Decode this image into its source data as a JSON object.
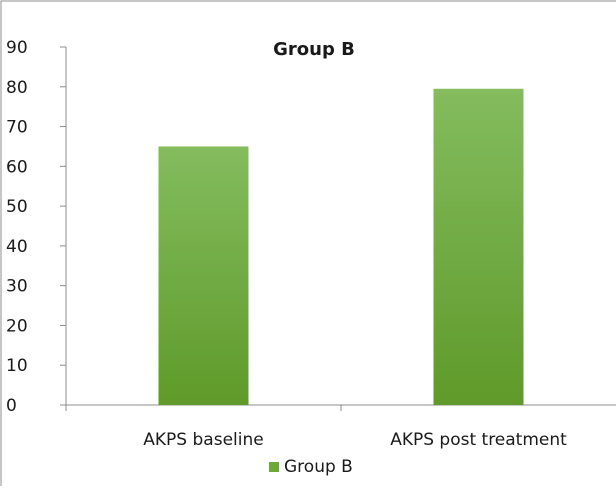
{
  "chart_data": {
    "type": "bar",
    "title": "Group B",
    "categories": [
      "AKPS baseline",
      "AKPS post treatment"
    ],
    "series": [
      {
        "name": "Group B",
        "values": [
          65,
          79.5
        ]
      }
    ],
    "y_ticks": [
      "0",
      "10",
      "20",
      "30",
      "40",
      "50",
      "60",
      "70",
      "80",
      "90"
    ],
    "ylim": [
      0,
      90
    ],
    "xlabel": "",
    "ylabel": "",
    "grid": false,
    "legend": {
      "position": "bottom",
      "entries": [
        "Group B"
      ]
    },
    "colors": {
      "bar_top": "#84bc5e",
      "bar_bottom": "#5f9a2a",
      "legend_swatch": "#6aaa35",
      "axis": "#8c8c8c",
      "border": "#8c8c8c"
    }
  }
}
